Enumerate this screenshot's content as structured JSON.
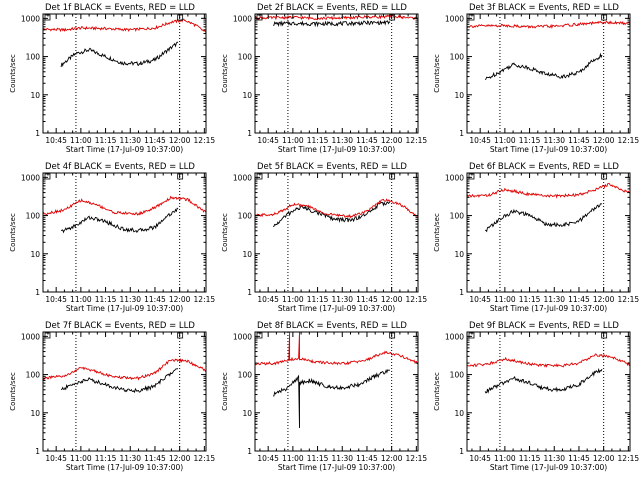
{
  "figure": {
    "colors": {
      "events": "#000000",
      "lld": "#e00000",
      "background": "#ffffff"
    }
  },
  "chart_data": [
    {
      "type": "line",
      "panel": 0,
      "title": "Det 1f BLACK = Events, RED = LLD",
      "xlabel": "Start Time (17-Jul-09 10:37:00)",
      "ylabel": "Counts/sec",
      "x_tick_labels": [
        "10:45",
        "11:00",
        "11:15",
        "11:30",
        "11:45",
        "12:00",
        "12:15"
      ],
      "y_tick_labels": [
        "1",
        "10",
        "100",
        "1000"
      ],
      "xlim": [
        "10:37",
        "12:16"
      ],
      "ylim": [
        1,
        1300
      ],
      "y_scale": "log",
      "marker_times": [
        "10:57",
        "12:00"
      ],
      "series": [
        {
          "name": "Events",
          "color": "#000000",
          "x": [
            "10:48",
            "10:57",
            "11:05",
            "11:15",
            "11:25",
            "11:35",
            "11:45",
            "11:52",
            "11:59"
          ],
          "y": [
            60,
            120,
            150,
            100,
            68,
            65,
            82,
            140,
            230
          ]
        },
        {
          "name": "LLD",
          "color": "#e00000",
          "x": [
            "10:37",
            "10:50",
            "11:00",
            "11:15",
            "11:30",
            "11:45",
            "11:55",
            "12:03",
            "12:10",
            "12:16"
          ],
          "y": [
            520,
            500,
            560,
            540,
            500,
            560,
            800,
            900,
            650,
            420
          ]
        }
      ]
    },
    {
      "type": "line",
      "panel": 1,
      "title": "Det 2f BLACK = Events, RED = LLD",
      "xlabel": "Start Time (17-Jul-09 10:37:00)",
      "ylabel": "Counts/sec",
      "x_tick_labels": [
        "10:45",
        "11:00",
        "11:15",
        "11:30",
        "11:45",
        "12:00",
        "12:15"
      ],
      "y_tick_labels": [
        "1",
        "10",
        "100",
        "1000"
      ],
      "xlim": [
        "10:37",
        "12:16"
      ],
      "ylim": [
        1,
        1300
      ],
      "y_scale": "log",
      "marker_times": [
        "10:57",
        "12:00"
      ],
      "series": [
        {
          "name": "Events",
          "color": "#000000",
          "x": [
            "10:48",
            "11:00",
            "11:15",
            "11:30",
            "11:45",
            "11:59"
          ],
          "y": [
            720,
            740,
            720,
            730,
            760,
            780
          ]
        },
        {
          "name": "LLD",
          "color": "#e00000",
          "x": [
            "10:37",
            "11:00",
            "11:15",
            "11:30",
            "11:45",
            "12:00",
            "12:16"
          ],
          "y": [
            1020,
            1060,
            1000,
            1030,
            1080,
            1120,
            1000
          ]
        }
      ]
    },
    {
      "type": "line",
      "panel": 2,
      "title": "Det 3f BLACK = Events, RED = LLD",
      "xlabel": "Start Time (17-Jul-09 10:37:00)",
      "ylabel": "Counts/sec",
      "x_tick_labels": [
        "10:45",
        "11:00",
        "11:15",
        "11:30",
        "11:45",
        "12:00",
        "12:15"
      ],
      "y_tick_labels": [
        "1",
        "10",
        "100",
        "1000"
      ],
      "xlim": [
        "10:37",
        "12:16"
      ],
      "ylim": [
        1,
        1300
      ],
      "y_scale": "log",
      "marker_times": [
        "10:57",
        "12:00"
      ],
      "series": [
        {
          "name": "Events",
          "color": "#000000",
          "x": [
            "10:48",
            "10:57",
            "11:05",
            "11:15",
            "11:25",
            "11:35",
            "11:45",
            "11:52",
            "11:59"
          ],
          "y": [
            25,
            40,
            62,
            50,
            35,
            30,
            38,
            70,
            110
          ]
        },
        {
          "name": "LLD",
          "color": "#e00000",
          "x": [
            "10:37",
            "11:00",
            "11:15",
            "11:30",
            "11:45",
            "12:00",
            "12:16"
          ],
          "y": [
            620,
            650,
            600,
            620,
            700,
            780,
            740
          ]
        }
      ]
    },
    {
      "type": "line",
      "panel": 3,
      "title": "Det 4f BLACK = Events, RED = LLD",
      "xlabel": "Start Time (17-Jul-09 10:37:00)",
      "ylabel": "Counts/sec",
      "x_tick_labels": [
        "10:45",
        "11:00",
        "11:15",
        "11:30",
        "11:45",
        "12:00",
        "12:15"
      ],
      "y_tick_labels": [
        "1",
        "10",
        "100",
        "1000"
      ],
      "xlim": [
        "10:37",
        "12:16"
      ],
      "ylim": [
        1,
        1300
      ],
      "y_scale": "log",
      "marker_times": [
        "10:57",
        "12:00"
      ],
      "series": [
        {
          "name": "Events",
          "color": "#000000",
          "x": [
            "10:48",
            "10:57",
            "11:05",
            "11:15",
            "11:25",
            "11:35",
            "11:45",
            "11:52",
            "11:59"
          ],
          "y": [
            38,
            55,
            90,
            70,
            45,
            40,
            50,
            95,
            150
          ]
        },
        {
          "name": "LLD",
          "color": "#e00000",
          "x": [
            "10:37",
            "10:50",
            "11:00",
            "11:10",
            "11:20",
            "11:35",
            "11:45",
            "11:55",
            "12:05",
            "12:16"
          ],
          "y": [
            110,
            140,
            250,
            190,
            120,
            110,
            160,
            300,
            260,
            120
          ]
        }
      ]
    },
    {
      "type": "line",
      "panel": 4,
      "title": "Det 5f BLACK = Events, RED = LLD",
      "xlabel": "Start Time (17-Jul-09 10:37:00)",
      "ylabel": "Counts/sec",
      "x_tick_labels": [
        "10:45",
        "11:00",
        "11:15",
        "11:30",
        "11:45",
        "12:00",
        "12:15"
      ],
      "y_tick_labels": [
        "1",
        "10",
        "100",
        "1000"
      ],
      "xlim": [
        "10:37",
        "12:16"
      ],
      "ylim": [
        1,
        1300
      ],
      "y_scale": "log",
      "marker_times": [
        "10:57",
        "12:00"
      ],
      "series": [
        {
          "name": "Events",
          "color": "#000000",
          "x": [
            "10:48",
            "10:57",
            "11:05",
            "11:15",
            "11:25",
            "11:35",
            "11:45",
            "11:52",
            "11:59"
          ],
          "y": [
            50,
            110,
            170,
            120,
            80,
            75,
            110,
            190,
            230
          ]
        },
        {
          "name": "LLD",
          "color": "#e00000",
          "x": [
            "10:37",
            "10:50",
            "11:00",
            "11:10",
            "11:20",
            "11:35",
            "11:45",
            "11:55",
            "12:05",
            "12:16"
          ],
          "y": [
            100,
            110,
            200,
            170,
            110,
            95,
            130,
            260,
            200,
            95
          ]
        }
      ]
    },
    {
      "type": "line",
      "panel": 5,
      "title": "Det 6f BLACK = Events, RED = LLD",
      "xlabel": "Start Time (17-Jul-09 10:37:00)",
      "ylabel": "Counts/sec",
      "x_tick_labels": [
        "10:45",
        "11:00",
        "11:15",
        "11:30",
        "11:45",
        "12:00",
        "12:15"
      ],
      "y_tick_labels": [
        "1",
        "10",
        "100",
        "1000"
      ],
      "xlim": [
        "10:37",
        "12:16"
      ],
      "ylim": [
        1,
        1300
      ],
      "y_scale": "log",
      "marker_times": [
        "10:57",
        "12:00"
      ],
      "series": [
        {
          "name": "Events",
          "color": "#000000",
          "x": [
            "10:48",
            "10:57",
            "11:05",
            "11:15",
            "11:25",
            "11:35",
            "11:45",
            "11:52",
            "11:59"
          ],
          "y": [
            40,
            80,
            130,
            100,
            60,
            55,
            70,
            130,
            200
          ]
        },
        {
          "name": "LLD",
          "color": "#e00000",
          "x": [
            "10:37",
            "10:50",
            "11:00",
            "11:15",
            "11:30",
            "11:45",
            "11:55",
            "12:03",
            "12:10",
            "12:16"
          ],
          "y": [
            320,
            340,
            480,
            360,
            320,
            350,
            480,
            650,
            500,
            380
          ]
        }
      ]
    },
    {
      "type": "line",
      "panel": 6,
      "title": "Det 7f BLACK = Events, RED = LLD",
      "xlabel": "Start Time (17-Jul-09 10:37:00)",
      "ylabel": "Counts/sec",
      "x_tick_labels": [
        "10:45",
        "11:00",
        "11:15",
        "11:30",
        "11:45",
        "12:00",
        "12:15"
      ],
      "y_tick_labels": [
        "1",
        "10",
        "100",
        "1000"
      ],
      "xlim": [
        "10:37",
        "12:16"
      ],
      "ylim": [
        1,
        1300
      ],
      "y_scale": "log",
      "marker_times": [
        "10:57",
        "12:00"
      ],
      "series": [
        {
          "name": "Events",
          "color": "#000000",
          "x": [
            "10:48",
            "10:57",
            "11:05",
            "11:15",
            "11:25",
            "11:35",
            "11:45",
            "11:52",
            "11:59"
          ],
          "y": [
            40,
            60,
            75,
            55,
            40,
            38,
            50,
            90,
            140
          ]
        },
        {
          "name": "LLD",
          "color": "#e00000",
          "x": [
            "10:37",
            "10:50",
            "11:00",
            "11:10",
            "11:20",
            "11:35",
            "11:45",
            "11:55",
            "12:05",
            "12:16"
          ],
          "y": [
            80,
            90,
            150,
            120,
            85,
            80,
            110,
            250,
            220,
            130
          ]
        }
      ]
    },
    {
      "type": "line",
      "panel": 7,
      "title": "Det 8f BLACK = Events, RED = LLD",
      "xlabel": "Start Time (17-Jul-09 10:37:00)",
      "ylabel": "Counts/sec",
      "x_tick_labels": [
        "10:45",
        "11:00",
        "11:15",
        "11:30",
        "11:45",
        "12:00",
        "12:15"
      ],
      "y_tick_labels": [
        "1",
        "10",
        "100",
        "1000"
      ],
      "xlim": [
        "10:37",
        "12:16"
      ],
      "ylim": [
        1,
        1300
      ],
      "y_scale": "log",
      "marker_times": [
        "10:57",
        "12:00"
      ],
      "series": [
        {
          "name": "Events",
          "color": "#000000",
          "x": [
            "10:48",
            "10:57",
            "11:04",
            "11:04",
            "11:04",
            "11:10",
            "11:20",
            "11:30",
            "11:40",
            "11:50",
            "11:59"
          ],
          "y": [
            30,
            45,
            90,
            4,
            60,
            70,
            50,
            45,
            55,
            90,
            130
          ]
        },
        {
          "name": "LLD",
          "color": "#e00000",
          "x": [
            "10:37",
            "10:50",
            "10:58",
            "10:58",
            "10:58",
            "11:04",
            "11:04",
            "11:04",
            "11:15",
            "11:30",
            "11:45",
            "11:55",
            "12:05",
            "12:16"
          ],
          "y": [
            190,
            200,
            240,
            1300,
            250,
            250,
            1300,
            260,
            210,
            190,
            240,
            380,
            320,
            200
          ]
        }
      ]
    },
    {
      "type": "line",
      "panel": 8,
      "title": "Det 9f BLACK = Events, RED = LLD",
      "xlabel": "Start Time (17-Jul-09 10:37:00)",
      "ylabel": "Counts/sec",
      "x_tick_labels": [
        "10:45",
        "11:00",
        "11:15",
        "11:30",
        "11:45",
        "12:00",
        "12:15"
      ],
      "y_tick_labels": [
        "1",
        "10",
        "100",
        "1000"
      ],
      "xlim": [
        "10:37",
        "12:16"
      ],
      "ylim": [
        1,
        1300
      ],
      "y_scale": "log",
      "marker_times": [
        "10:57",
        "12:00"
      ],
      "series": [
        {
          "name": "Events",
          "color": "#000000",
          "x": [
            "10:48",
            "10:57",
            "11:05",
            "11:15",
            "11:25",
            "11:35",
            "11:45",
            "11:52",
            "11:59"
          ],
          "y": [
            35,
            55,
            80,
            60,
            42,
            40,
            55,
            95,
            140
          ]
        },
        {
          "name": "LLD",
          "color": "#e00000",
          "x": [
            "10:37",
            "10:50",
            "11:00",
            "11:10",
            "11:20",
            "11:35",
            "11:45",
            "11:55",
            "12:05",
            "12:16"
          ],
          "y": [
            170,
            190,
            260,
            210,
            175,
            170,
            200,
            330,
            290,
            180
          ]
        }
      ]
    }
  ]
}
